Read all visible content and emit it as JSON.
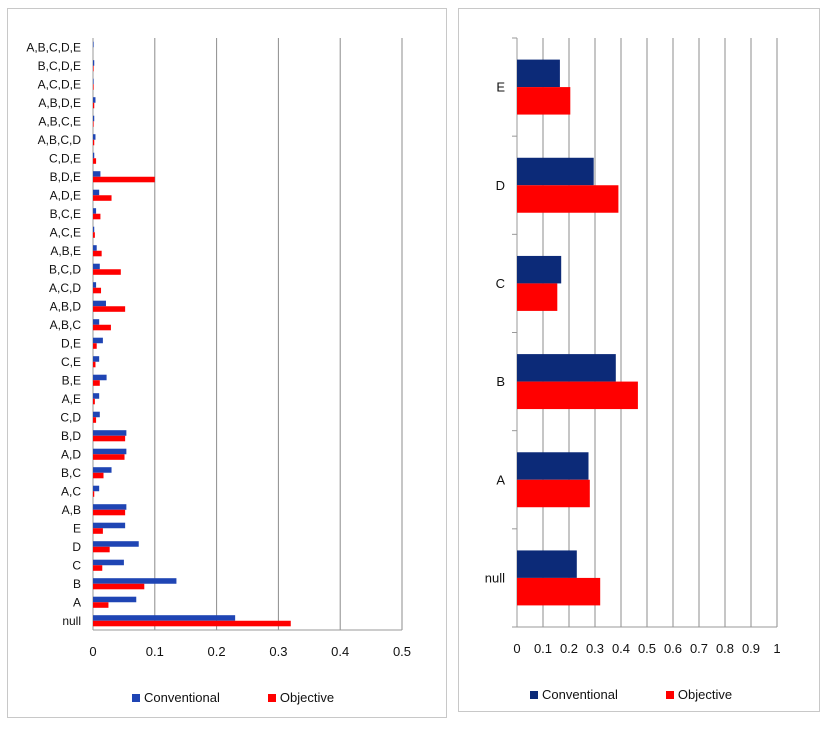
{
  "colors": {
    "conventional": "#1f45b4",
    "conventional_right": "#0c2a78",
    "objective": "#ff0000",
    "grid": "#8c8c8c",
    "axis": "#999999"
  },
  "legend": {
    "series_a": "Conventional",
    "series_b": "Objective"
  },
  "chart_data": [
    {
      "type": "bar",
      "orientation": "horizontal",
      "title": "",
      "xlabel": "",
      "ylabel": "",
      "xlim": [
        0,
        0.5
      ],
      "xticks": [
        "0",
        "0.1",
        "0.2",
        "0.3",
        "0.4",
        "0.5"
      ],
      "grid": "vertical",
      "categories": [
        "null",
        "A",
        "B",
        "C",
        "D",
        "E",
        "A,B",
        "A,C",
        "B,C",
        "A,D",
        "B,D",
        "C,D",
        "A,E",
        "B,E",
        "C,E",
        "D,E",
        "A,B,C",
        "A,B,D",
        "A,C,D",
        "B,C,D",
        "A,B,E",
        "A,C,E",
        "B,C,E",
        "A,D,E",
        "B,D,E",
        "C,D,E",
        "A,B,C,D",
        "A,B,C,E",
        "A,B,D,E",
        "A,C,D,E",
        "B,C,D,E",
        "A,B,C,D,E"
      ],
      "series": [
        {
          "name": "Conventional",
          "values": [
            0.23,
            0.07,
            0.135,
            0.05,
            0.074,
            0.052,
            0.054,
            0.01,
            0.03,
            0.054,
            0.054,
            0.011,
            0.01,
            0.022,
            0.01,
            0.016,
            0.01,
            0.021,
            0.005,
            0.011,
            0.006,
            0.002,
            0.005,
            0.01,
            0.012,
            0.002,
            0.004,
            0.002,
            0.004,
            0.001,
            0.002,
            0.001
          ]
        },
        {
          "name": "Objective",
          "values": [
            0.32,
            0.025,
            0.083,
            0.015,
            0.027,
            0.016,
            0.052,
            0.002,
            0.017,
            0.051,
            0.052,
            0.005,
            0.003,
            0.011,
            0.004,
            0.006,
            0.029,
            0.052,
            0.013,
            0.045,
            0.014,
            0.003,
            0.012,
            0.03,
            0.1,
            0.005,
            0.002,
            0.001,
            0.002,
            0.001,
            0.001,
            0.0
          ]
        }
      ],
      "legend": "bottom"
    },
    {
      "type": "bar",
      "orientation": "horizontal",
      "title": "",
      "xlabel": "",
      "ylabel": "",
      "xlim": [
        0,
        1
      ],
      "xticks": [
        "0",
        "0.1",
        "0.2",
        "0.3",
        "0.4",
        "0.5",
        "0.6",
        "0.7",
        "0.8",
        "0.9",
        "1"
      ],
      "grid": "vertical",
      "categories": [
        "null",
        "A",
        "B",
        "C",
        "D",
        "E"
      ],
      "series": [
        {
          "name": "Conventional",
          "values": [
            0.23,
            0.275,
            0.38,
            0.17,
            0.295,
            0.165
          ]
        },
        {
          "name": "Objective",
          "values": [
            0.32,
            0.28,
            0.465,
            0.155,
            0.39,
            0.205
          ]
        }
      ],
      "legend": "bottom"
    }
  ]
}
